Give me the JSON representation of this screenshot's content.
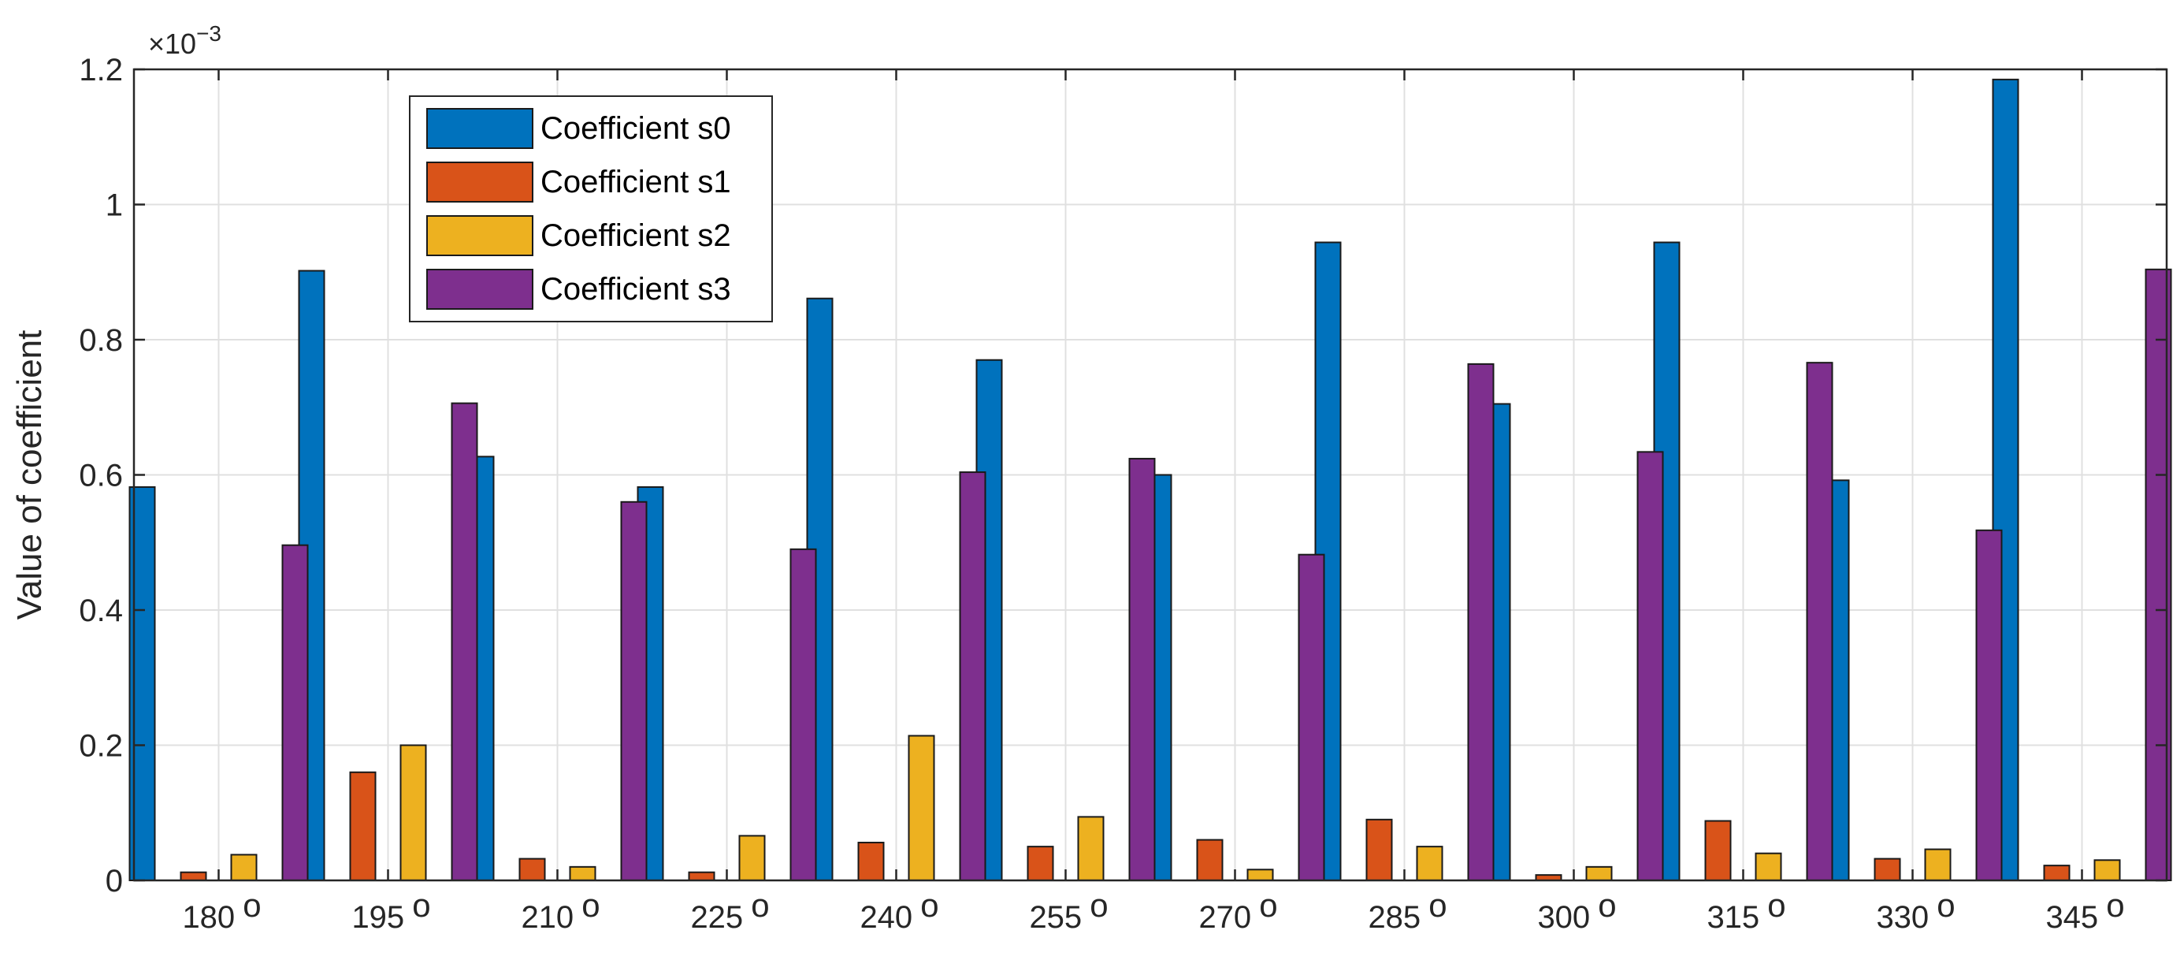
{
  "chart_data": {
    "type": "bar",
    "title": "",
    "xlabel": "",
    "ylabel": "Value of coefficient",
    "y_exponent_label": {
      "base": "×10",
      "exponent": "−3"
    },
    "ylim": [
      0,
      1.2
    ],
    "y_ticks": [
      0,
      0.2,
      0.4,
      0.6,
      0.8,
      1,
      1.2
    ],
    "y_tick_labels": [
      "0",
      "0.2",
      "0.4",
      "0.6",
      "0.8",
      "1",
      "1.2"
    ],
    "grid": true,
    "legend_position": "top-left",
    "categories": [
      "180",
      "195",
      "210",
      "225",
      "240",
      "255",
      "270",
      "285",
      "300",
      "315",
      "330",
      "345"
    ],
    "category_superscript": "o",
    "series": [
      {
        "name": "Coefficient s0",
        "color": "#0072BD",
        "values": [
          0.582,
          0.902,
          0.627,
          0.582,
          0.861,
          0.77,
          0.6,
          0.944,
          0.705,
          0.944,
          0.592,
          1.185
        ]
      },
      {
        "name": "Coefficient s1",
        "color": "#D95319",
        "values": [
          0.012,
          0.16,
          0.032,
          0.012,
          0.056,
          0.05,
          0.06,
          0.09,
          0.008,
          0.088,
          0.032,
          0.022
        ]
      },
      {
        "name": "Coefficient s2",
        "color": "#EDB120",
        "values": [
          0.038,
          0.2,
          0.02,
          0.066,
          0.214,
          0.094,
          0.016,
          0.05,
          0.02,
          0.04,
          0.046,
          0.03
        ]
      },
      {
        "name": "Coefficient s3",
        "color": "#7E2F8E",
        "values": [
          0.496,
          0.706,
          0.56,
          0.49,
          0.604,
          0.624,
          0.482,
          0.764,
          0.634,
          0.766,
          0.518,
          0.904
        ]
      }
    ]
  }
}
